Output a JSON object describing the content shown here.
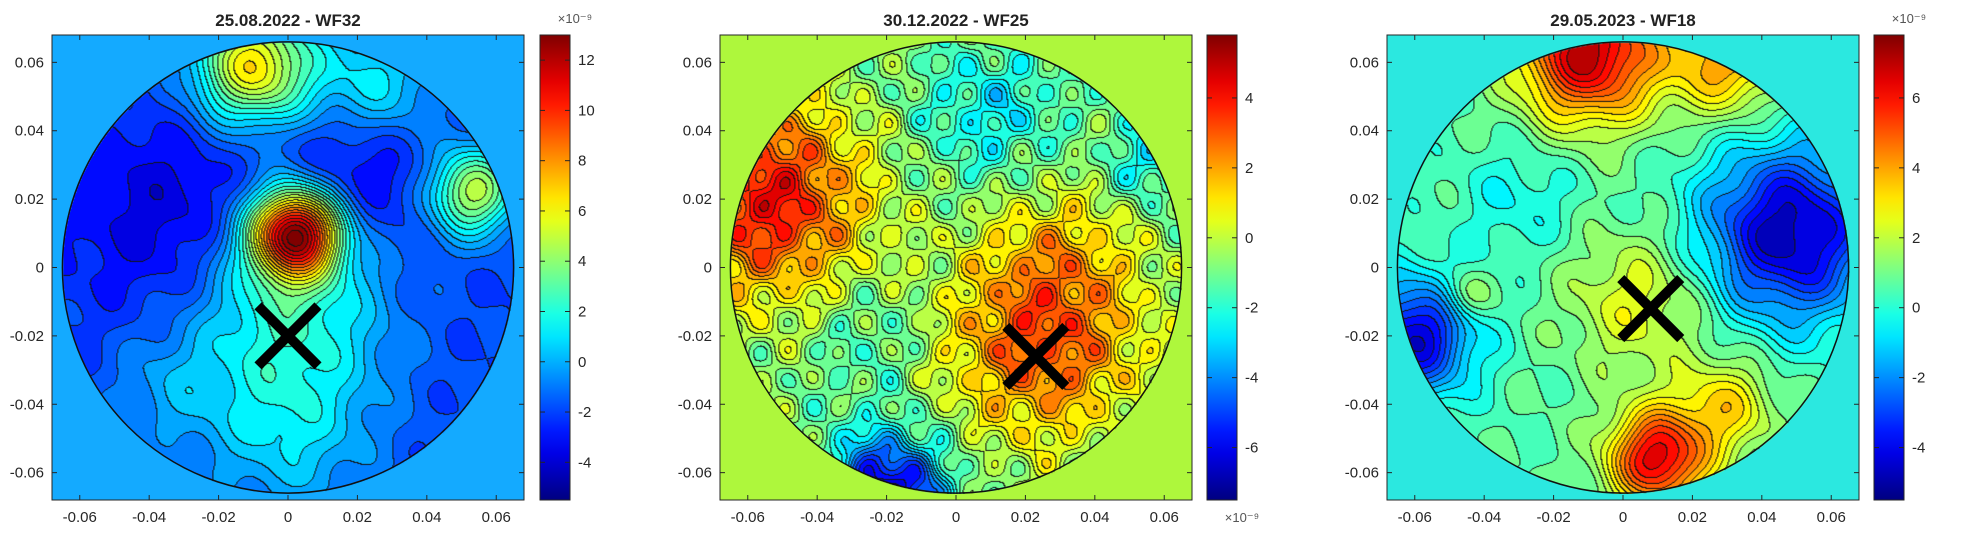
{
  "chart_data": [
    {
      "type": "heatmap",
      "subtype": "filled-contour",
      "title": "25.08.2022 - WF32",
      "xlim": [
        -0.068,
        0.068
      ],
      "ylim": [
        -0.068,
        0.068
      ],
      "xticks": [
        -0.06,
        -0.04,
        -0.02,
        0,
        0.02,
        0.04,
        0.06
      ],
      "yticks": [
        -0.06,
        -0.04,
        -0.02,
        0,
        0.02,
        0.04,
        0.06
      ],
      "xtick_labels": [
        "-0.06",
        "-0.04",
        "-0.02",
        "0",
        "0.02",
        "0.04",
        "0.06"
      ],
      "ytick_labels": [
        "0.06",
        "0.04",
        "0.02",
        "0",
        "-0.02",
        "-0.04",
        "-0.06"
      ],
      "aperture_radius": 0.065,
      "background_color": "#14aaff",
      "colorbar": {
        "range": [
          -5.5,
          13.0
        ],
        "ticks": [
          -4,
          -2,
          0,
          2,
          4,
          6,
          8,
          10,
          12
        ],
        "tick_labels": [
          "-4",
          "-2",
          "0",
          "2",
          "4",
          "6",
          "8",
          "10",
          "12"
        ],
        "exponent_label": "×10⁻⁹",
        "exponent_position": "top",
        "colormap": "jet"
      },
      "marker": {
        "symbol": "X",
        "x": 0.0,
        "y": -0.02
      },
      "field": {
        "base": -2.0,
        "features": [
          {
            "x": 0.002,
            "y": 0.01,
            "amp": 14.0,
            "sigma": 0.009
          },
          {
            "x": 0.0,
            "y": -0.012,
            "amp": 4.0,
            "sigma": 0.02
          },
          {
            "x": -0.01,
            "y": 0.058,
            "amp": 8.5,
            "sigma": 0.012
          },
          {
            "x": 0.025,
            "y": 0.05,
            "amp": 4.5,
            "sigma": 0.014
          },
          {
            "x": 0.053,
            "y": 0.022,
            "amp": 7.0,
            "sigma": 0.009
          },
          {
            "x": 0.022,
            "y": 0.035,
            "amp": -3.0,
            "sigma": 0.016
          },
          {
            "x": -0.035,
            "y": 0.015,
            "amp": -2.0,
            "sigma": 0.02
          },
          {
            "x": 0.0,
            "y": -0.048,
            "amp": 2.5,
            "sigma": 0.018
          },
          {
            "x": -0.035,
            "y": -0.035,
            "amp": 1.5,
            "sigma": 0.012
          }
        ]
      }
    },
    {
      "type": "heatmap",
      "subtype": "filled-contour",
      "title": "30.12.2022 - WF25",
      "xlim": [
        -0.068,
        0.068
      ],
      "ylim": [
        -0.068,
        0.068
      ],
      "xticks": [
        -0.06,
        -0.04,
        -0.02,
        0,
        0.02,
        0.04,
        0.06
      ],
      "yticks": [
        -0.06,
        -0.04,
        -0.02,
        0,
        0.02,
        0.04,
        0.06
      ],
      "xtick_labels": [
        "-0.06",
        "-0.04",
        "-0.02",
        "0",
        "0.02",
        "0.04",
        "0.06"
      ],
      "ytick_labels": [
        "0.06",
        "0.04",
        "0.02",
        "0",
        "-0.02",
        "-0.04",
        "-0.06"
      ],
      "aperture_radius": 0.065,
      "background_color": "#aef73c",
      "colorbar": {
        "range": [
          -7.5,
          5.8
        ],
        "ticks": [
          -6,
          -4,
          -2,
          0,
          2,
          4
        ],
        "tick_labels": [
          "-6",
          "-4",
          "-2",
          "0",
          "2",
          "4"
        ],
        "exponent_label": "×10⁻⁹",
        "exponent_position": "bottom",
        "colormap": "jet"
      },
      "marker": {
        "symbol": "X",
        "x": 0.023,
        "y": -0.026
      },
      "field": {
        "base": -0.8,
        "features": [
          {
            "x": -0.055,
            "y": 0.02,
            "amp": 5.0,
            "sigma": 0.02
          },
          {
            "x": 0.025,
            "y": -0.022,
            "amp": 3.8,
            "sigma": 0.02
          },
          {
            "x": -0.02,
            "y": -0.065,
            "amp": -6.0,
            "sigma": 0.012
          },
          {
            "x": 0.01,
            "y": 0.045,
            "amp": -1.8,
            "sigma": 0.015
          },
          {
            "x": 0.055,
            "y": 0.03,
            "amp": -2.0,
            "sigma": 0.008
          },
          {
            "x": 0.03,
            "y": 0.005,
            "amp": 1.5,
            "sigma": 0.015
          },
          {
            "x": -0.025,
            "y": -0.02,
            "amp": -1.0,
            "sigma": 0.012
          }
        ],
        "ripple": 0.9
      }
    },
    {
      "type": "heatmap",
      "subtype": "filled-contour",
      "title": "29.05.2023 - WF18",
      "xlim": [
        -0.068,
        0.068
      ],
      "ylim": [
        -0.068,
        0.068
      ],
      "xticks": [
        -0.06,
        -0.04,
        -0.02,
        0,
        0.02,
        0.04,
        0.06
      ],
      "yticks": [
        -0.06,
        -0.04,
        -0.02,
        0,
        0.02,
        0.04,
        0.06
      ],
      "xtick_labels": [
        "-0.06",
        "-0.04",
        "-0.02",
        "0",
        "0.02",
        "0.04",
        "0.06"
      ],
      "ytick_labels": [
        "0.06",
        "0.04",
        "0.02",
        "0",
        "-0.02",
        "-0.04",
        "-0.06"
      ],
      "aperture_radius": 0.065,
      "background_color": "#2be8e0",
      "colorbar": {
        "range": [
          -5.5,
          7.8
        ],
        "ticks": [
          -4,
          -2,
          0,
          2,
          4,
          6
        ],
        "tick_labels": [
          "-4",
          "-2",
          "0",
          "2",
          "4",
          "6"
        ],
        "exponent_label": "×10⁻⁹",
        "exponent_position": "top",
        "colormap": "jet"
      },
      "marker": {
        "symbol": "X",
        "x": 0.008,
        "y": -0.012
      },
      "field": {
        "base": 0.6,
        "features": [
          {
            "x": -0.01,
            "y": 0.062,
            "amp": 6.5,
            "sigma": 0.014
          },
          {
            "x": 0.03,
            "y": 0.06,
            "amp": 3.5,
            "sigma": 0.012
          },
          {
            "x": 0.01,
            "y": -0.055,
            "amp": 6.0,
            "sigma": 0.01
          },
          {
            "x": 0.03,
            "y": -0.04,
            "amp": 2.5,
            "sigma": 0.01
          },
          {
            "x": 0.048,
            "y": 0.01,
            "amp": -5.5,
            "sigma": 0.018
          },
          {
            "x": -0.06,
            "y": -0.02,
            "amp": -5.0,
            "sigma": 0.012
          },
          {
            "x": -0.045,
            "y": -0.008,
            "amp": 1.8,
            "sigma": 0.005
          },
          {
            "x": 0.005,
            "y": -0.01,
            "amp": 2.0,
            "sigma": 0.015
          },
          {
            "x": -0.03,
            "y": 0.02,
            "amp": -1.0,
            "sigma": 0.012
          }
        ]
      }
    }
  ]
}
